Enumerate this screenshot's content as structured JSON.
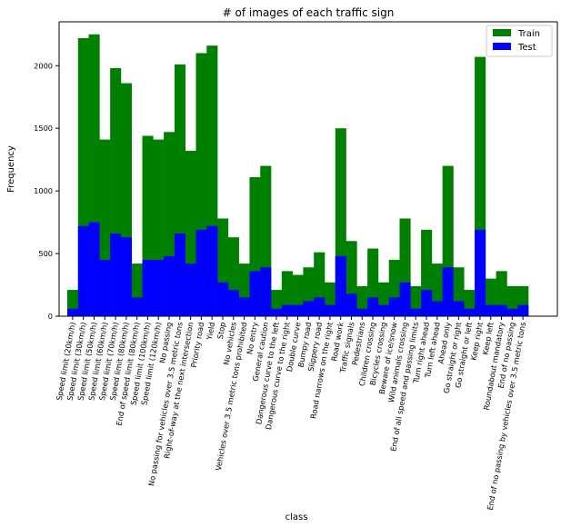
{
  "chart_data": {
    "type": "bar",
    "title": "# of images of each traffic sign",
    "xlabel": "class",
    "ylabel": "Frequency",
    "ylim": [
      0,
      2350
    ],
    "yticks": [
      0,
      500,
      1000,
      1500,
      2000
    ],
    "legend_position": "top-right",
    "grid": false,
    "categories": [
      "Speed limit (20km/h)",
      "Speed limit (30km/h)",
      "Speed limit (50km/h)",
      "Speed limit (60km/h)",
      "Speed limit (70km/h)",
      "Speed limit (80km/h)",
      "End of speed limit (80km/h)",
      "Speed limit (100km/h)",
      "Speed limit (120km/h)",
      "No passing",
      "No passing for vehicles over 3.5 metric tons",
      "Right-of-way at the next intersection",
      "Priority road",
      "Yield",
      "Stop",
      "No vehicles",
      "Vehicles over 3.5 metric tons prohibited",
      "No entry",
      "General caution",
      "Dangerous curve to the left",
      "Dangerous curve to the right",
      "Double curve",
      "Bumpy road",
      "Slippery road",
      "Road narrows on the right",
      "Road work",
      "Traffic signals",
      "Pedestrians",
      "Children crossing",
      "Bicycles crossing",
      "Beware of ice/snow",
      "Wild animals crossing",
      "End of all speed and passing limits",
      "Turn right ahead",
      "Turn left ahead",
      "Ahead only",
      "Go straight or right",
      "Go straight or left",
      "Keep right",
      "Keep left",
      "Roundabout mandatory",
      "End of no passing",
      "End of no passing by vehicles over 3.5 metric tons"
    ],
    "series": [
      {
        "name": "Train",
        "color": "#008000",
        "values": [
          210,
          2220,
          2250,
          1410,
          1980,
          1860,
          420,
          1440,
          1410,
          1470,
          2010,
          1320,
          2100,
          2160,
          780,
          630,
          420,
          1110,
          1200,
          210,
          360,
          330,
          390,
          510,
          270,
          1500,
          600,
          240,
          540,
          270,
          450,
          780,
          240,
          690,
          420,
          1200,
          390,
          210,
          2070,
          300,
          360,
          240,
          240
        ]
      },
      {
        "name": "Test",
        "color": "#0000ff",
        "values": [
          60,
          720,
          750,
          450,
          660,
          630,
          150,
          450,
          450,
          480,
          660,
          420,
          690,
          720,
          270,
          210,
          150,
          360,
          390,
          60,
          90,
          90,
          120,
          150,
          90,
          480,
          180,
          60,
          150,
          90,
          150,
          270,
          60,
          210,
          120,
          390,
          120,
          60,
          690,
          90,
          90,
          60,
          90
        ]
      }
    ]
  }
}
